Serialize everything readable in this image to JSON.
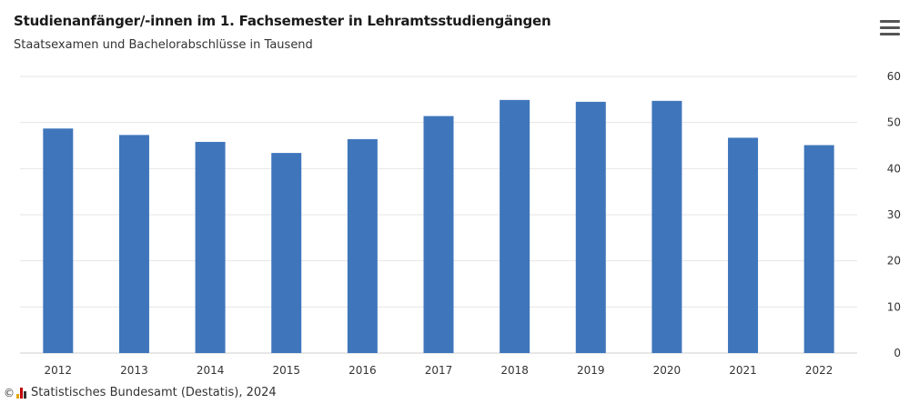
{
  "chart_data": {
    "type": "bar",
    "title": "Studienanfänger/-innen im 1. Fachsemester in Lehramtsstudiengängen",
    "subtitle": "Staatsexamen und Bachelorabschlüsse in Tausend",
    "categories": [
      "2012",
      "2013",
      "2014",
      "2015",
      "2016",
      "2017",
      "2018",
      "2019",
      "2020",
      "2021",
      "2022"
    ],
    "values": [
      48.7,
      47.3,
      45.8,
      43.4,
      46.4,
      51.4,
      54.9,
      54.5,
      54.7,
      46.7,
      45.1
    ],
    "ylim": [
      0,
      60
    ],
    "yticks": [
      0,
      10,
      20,
      30,
      40,
      50,
      60
    ],
    "grid": true,
    "y_axis_side": "right",
    "bar_color": "#3f76bb"
  },
  "footer": {
    "copyright_symbol": "©",
    "source": "Statistisches Bundesamt (Destatis), 2024"
  },
  "menu": {
    "icon": "hamburger-menu-icon"
  }
}
